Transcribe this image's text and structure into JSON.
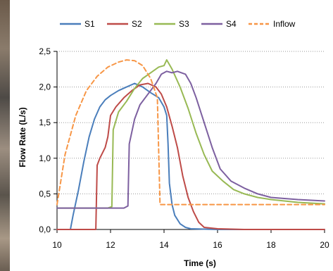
{
  "chart_data": {
    "type": "line",
    "xlabel": "Time (s)",
    "ylabel": "Flow Rate (L/s)",
    "xlim": [
      10,
      20
    ],
    "ylim": [
      0,
      2.5
    ],
    "x_ticks": [
      "10",
      "12",
      "14",
      "16",
      "18",
      "20"
    ],
    "y_ticks": [
      "0,0",
      "0,5",
      "1,0",
      "1,5",
      "2,0",
      "2,5"
    ],
    "grid": "horizontal dotted",
    "legend_position": "top",
    "series": [
      {
        "name": "S1",
        "color": "#4a7ebb",
        "dash": "solid",
        "points": [
          [
            10,
            0
          ],
          [
            10.5,
            0
          ],
          [
            10.6,
            0.2
          ],
          [
            10.8,
            0.55
          ],
          [
            11,
            0.95
          ],
          [
            11.2,
            1.3
          ],
          [
            11.4,
            1.55
          ],
          [
            11.6,
            1.72
          ],
          [
            11.8,
            1.82
          ],
          [
            12,
            1.88
          ],
          [
            12.3,
            1.95
          ],
          [
            12.6,
            2.0
          ],
          [
            12.9,
            2.05
          ],
          [
            13.2,
            2.0
          ],
          [
            13.5,
            1.92
          ],
          [
            13.8,
            1.85
          ],
          [
            14.0,
            1.72
          ],
          [
            14.1,
            1.6
          ],
          [
            14.15,
            1.2
          ],
          [
            14.2,
            0.65
          ],
          [
            14.3,
            0.35
          ],
          [
            14.4,
            0.2
          ],
          [
            14.6,
            0.08
          ],
          [
            14.8,
            0.03
          ],
          [
            15,
            0.01
          ],
          [
            16,
            0
          ],
          [
            20,
            0
          ]
        ]
      },
      {
        "name": "S2",
        "color": "#be4b48",
        "dash": "solid",
        "points": [
          [
            10,
            0
          ],
          [
            11.45,
            0
          ],
          [
            11.5,
            0.9
          ],
          [
            11.6,
            1.0
          ],
          [
            11.8,
            1.15
          ],
          [
            11.9,
            1.3
          ],
          [
            12,
            1.6
          ],
          [
            12.2,
            1.72
          ],
          [
            12.5,
            1.85
          ],
          [
            12.8,
            1.95
          ],
          [
            13.1,
            2.03
          ],
          [
            13.4,
            2.05
          ],
          [
            13.7,
            2.0
          ],
          [
            13.9,
            1.9
          ],
          [
            14.1,
            1.72
          ],
          [
            14.3,
            1.45
          ],
          [
            14.5,
            1.15
          ],
          [
            14.7,
            0.75
          ],
          [
            14.9,
            0.45
          ],
          [
            15.1,
            0.25
          ],
          [
            15.3,
            0.1
          ],
          [
            15.5,
            0.03
          ],
          [
            16,
            0.01
          ],
          [
            17,
            0
          ],
          [
            20,
            0
          ]
        ]
      },
      {
        "name": "S3",
        "color": "#98b954",
        "dash": "solid",
        "points": [
          [
            10,
            0.3
          ],
          [
            11.9,
            0.3
          ],
          [
            12.05,
            0.32
          ],
          [
            12.1,
            1.4
          ],
          [
            12.3,
            1.65
          ],
          [
            12.6,
            1.8
          ],
          [
            12.9,
            1.98
          ],
          [
            13.2,
            2.12
          ],
          [
            13.5,
            2.2
          ],
          [
            13.8,
            2.28
          ],
          [
            14.0,
            2.3
          ],
          [
            14.1,
            2.38
          ],
          [
            14.3,
            2.25
          ],
          [
            14.6,
            2.0
          ],
          [
            14.9,
            1.7
          ],
          [
            15.2,
            1.35
          ],
          [
            15.5,
            1.05
          ],
          [
            15.8,
            0.82
          ],
          [
            16.2,
            0.68
          ],
          [
            16.6,
            0.56
          ],
          [
            17,
            0.5
          ],
          [
            17.5,
            0.45
          ],
          [
            18,
            0.42
          ],
          [
            19,
            0.38
          ],
          [
            20,
            0.36
          ]
        ]
      },
      {
        "name": "S4",
        "color": "#7d60a0",
        "dash": "solid",
        "points": [
          [
            10,
            0.3
          ],
          [
            12.5,
            0.3
          ],
          [
            12.65,
            0.33
          ],
          [
            12.7,
            1.2
          ],
          [
            12.9,
            1.55
          ],
          [
            13.1,
            1.75
          ],
          [
            13.4,
            1.9
          ],
          [
            13.7,
            2.05
          ],
          [
            13.9,
            2.18
          ],
          [
            14.1,
            2.22
          ],
          [
            14.3,
            2.2
          ],
          [
            14.5,
            2.22
          ],
          [
            14.8,
            2.18
          ],
          [
            15.0,
            2.05
          ],
          [
            15.2,
            1.85
          ],
          [
            15.5,
            1.5
          ],
          [
            15.8,
            1.15
          ],
          [
            16.1,
            0.85
          ],
          [
            16.5,
            0.68
          ],
          [
            17,
            0.58
          ],
          [
            17.5,
            0.5
          ],
          [
            18,
            0.45
          ],
          [
            19,
            0.42
          ],
          [
            20,
            0.4
          ]
        ]
      },
      {
        "name": "Inflow",
        "color": "#f79646",
        "dash": "dashed",
        "points": [
          [
            10,
            0.35
          ],
          [
            10.3,
            1.05
          ],
          [
            10.7,
            1.6
          ],
          [
            11.1,
            1.95
          ],
          [
            11.5,
            2.15
          ],
          [
            11.9,
            2.28
          ],
          [
            12.3,
            2.35
          ],
          [
            12.6,
            2.38
          ],
          [
            12.9,
            2.37
          ],
          [
            13.2,
            2.3
          ],
          [
            13.5,
            2.12
          ],
          [
            13.75,
            1.85
          ],
          [
            13.85,
            0.35
          ],
          [
            20,
            0.35
          ]
        ]
      }
    ]
  }
}
